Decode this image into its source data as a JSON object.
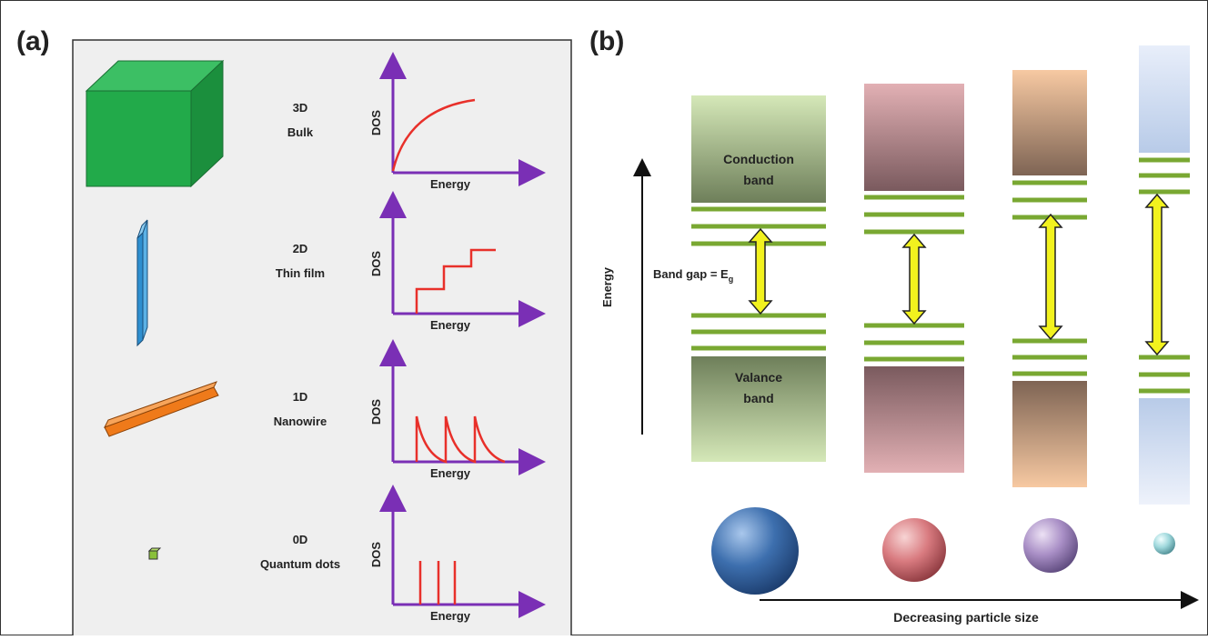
{
  "panel_a": {
    "label": "(a)",
    "rows": [
      {
        "dimension": "3D",
        "name": "Bulk",
        "y_label": "DOS",
        "x_label": "Energy"
      },
      {
        "dimension": "2D",
        "name": "Thin film",
        "y_label": "DOS",
        "x_label": "Energy"
      },
      {
        "dimension": "1D",
        "name": "Nanowire",
        "y_label": "DOS",
        "x_label": "Energy"
      },
      {
        "dimension": "0D",
        "name": "Quantum dots",
        "y_label": "DOS",
        "x_label": "Energy"
      }
    ]
  },
  "panel_b": {
    "label": "(b)",
    "axis_label": "Energy",
    "conduction_band": [
      "Conduction",
      "band"
    ],
    "valence_band": [
      "Valance",
      "band"
    ],
    "band_gap_label": "Band gap = E",
    "band_gap_subscript": "g",
    "size_label": "Decreasing particle size"
  }
}
